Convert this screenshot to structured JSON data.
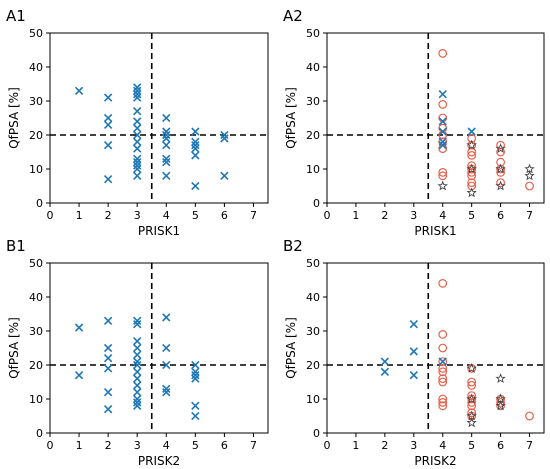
{
  "chart_data": [
    {
      "panel": "A1",
      "type": "scatter",
      "xlabel": "PRISK1",
      "ylabel": "QfPSA [%]",
      "xlim": [
        0,
        7.5
      ],
      "ylim": [
        0,
        50
      ],
      "xticks": [
        "0",
        "1",
        "2",
        "3",
        "4",
        "5",
        "6",
        "7"
      ],
      "yticks": [
        "0",
        "10",
        "20",
        "30",
        "40",
        "50"
      ],
      "hline": 20,
      "vline": 3.5,
      "series": [
        {
          "marker": "x",
          "color": "#1f77b4",
          "points": [
            [
              1,
              33
            ],
            [
              2,
              31
            ],
            [
              2,
              25
            ],
            [
              2,
              23
            ],
            [
              2,
              17
            ],
            [
              2,
              7
            ],
            [
              3,
              34
            ],
            [
              3,
              33
            ],
            [
              3,
              32
            ],
            [
              3,
              31
            ],
            [
              3,
              27
            ],
            [
              3,
              24
            ],
            [
              3,
              22
            ],
            [
              3,
              20
            ],
            [
              3,
              18
            ],
            [
              3,
              16
            ],
            [
              3,
              13
            ],
            [
              3,
              12
            ],
            [
              3,
              11
            ],
            [
              3,
              10
            ],
            [
              3,
              8
            ],
            [
              4,
              25
            ],
            [
              4,
              21
            ],
            [
              4,
              20
            ],
            [
              4,
              19
            ],
            [
              4,
              17
            ],
            [
              4,
              13
            ],
            [
              4,
              12
            ],
            [
              4,
              8
            ],
            [
              5,
              21
            ],
            [
              5,
              18
            ],
            [
              5,
              17
            ],
            [
              5,
              16
            ],
            [
              5,
              14
            ],
            [
              5,
              5
            ],
            [
              6,
              20
            ],
            [
              6,
              19
            ],
            [
              6,
              8
            ]
          ]
        }
      ]
    },
    {
      "panel": "A2",
      "type": "scatter",
      "xlabel": "PRISK1",
      "ylabel": "QfPSA [%]",
      "xlim": [
        0,
        7.5
      ],
      "ylim": [
        0,
        50
      ],
      "xticks": [
        "0",
        "1",
        "2",
        "3",
        "4",
        "5",
        "6",
        "7"
      ],
      "yticks": [
        "0",
        "10",
        "20",
        "30",
        "40",
        "50"
      ],
      "hline": 20,
      "vline": 3.5,
      "series": [
        {
          "marker": "circle",
          "color": "#e8604c",
          "points": [
            [
              4,
              44
            ],
            [
              4,
              29
            ],
            [
              4,
              25
            ],
            [
              4,
              22
            ],
            [
              4,
              20
            ],
            [
              4,
              18
            ],
            [
              4,
              16
            ],
            [
              4,
              9
            ],
            [
              4,
              8
            ],
            [
              5,
              19
            ],
            [
              5,
              17
            ],
            [
              5,
              15
            ],
            [
              5,
              14
            ],
            [
              5,
              11
            ],
            [
              5,
              10
            ],
            [
              5,
              9
            ],
            [
              5,
              8
            ],
            [
              5,
              6
            ],
            [
              5,
              5
            ],
            [
              6,
              17
            ],
            [
              6,
              15
            ],
            [
              6,
              12
            ],
            [
              6,
              10
            ],
            [
              6,
              9
            ],
            [
              6,
              6
            ],
            [
              7,
              5
            ]
          ]
        },
        {
          "marker": "x",
          "color": "#1f77b4",
          "points": [
            [
              4,
              32
            ],
            [
              4,
              24
            ],
            [
              4,
              21
            ],
            [
              4,
              18
            ],
            [
              4,
              17
            ],
            [
              5,
              21
            ]
          ]
        },
        {
          "marker": "star",
          "color": "#444444",
          "points": [
            [
              4,
              5
            ],
            [
              5,
              17
            ],
            [
              5,
              10
            ],
            [
              5,
              3
            ],
            [
              6,
              16
            ],
            [
              6,
              10
            ],
            [
              6,
              5
            ],
            [
              7,
              10
            ],
            [
              7,
              8
            ]
          ]
        }
      ]
    },
    {
      "panel": "B1",
      "type": "scatter",
      "xlabel": "PRISK2",
      "ylabel": "QfPSA [%]",
      "xlim": [
        0,
        7.5
      ],
      "ylim": [
        0,
        50
      ],
      "xticks": [
        "0",
        "1",
        "2",
        "3",
        "4",
        "5",
        "6",
        "7"
      ],
      "yticks": [
        "0",
        "10",
        "20",
        "30",
        "40",
        "50"
      ],
      "hline": 20,
      "vline": 3.5,
      "series": [
        {
          "marker": "x",
          "color": "#1f77b4",
          "points": [
            [
              1,
              31
            ],
            [
              1,
              17
            ],
            [
              2,
              33
            ],
            [
              2,
              25
            ],
            [
              2,
              22
            ],
            [
              2,
              19
            ],
            [
              2,
              12
            ],
            [
              2,
              7
            ],
            [
              3,
              33
            ],
            [
              3,
              32
            ],
            [
              3,
              27
            ],
            [
              3,
              25
            ],
            [
              3,
              23
            ],
            [
              3,
              21
            ],
            [
              3,
              20
            ],
            [
              3,
              18
            ],
            [
              3,
              16
            ],
            [
              3,
              14
            ],
            [
              3,
              12
            ],
            [
              3,
              10
            ],
            [
              3,
              9
            ],
            [
              3,
              8
            ],
            [
              4,
              34
            ],
            [
              4,
              25
            ],
            [
              4,
              20
            ],
            [
              4,
              13
            ],
            [
              4,
              12
            ],
            [
              5,
              20
            ],
            [
              5,
              18
            ],
            [
              5,
              17
            ],
            [
              5,
              16
            ],
            [
              5,
              8
            ],
            [
              5,
              5
            ]
          ]
        }
      ]
    },
    {
      "panel": "B2",
      "type": "scatter",
      "xlabel": "PRISK2",
      "ylabel": "QfPSA [%]",
      "xlim": [
        0,
        7.5
      ],
      "ylim": [
        0,
        50
      ],
      "xticks": [
        "0",
        "1",
        "2",
        "3",
        "4",
        "5",
        "6",
        "7"
      ],
      "yticks": [
        "0",
        "10",
        "20",
        "30",
        "40",
        "50"
      ],
      "hline": 20,
      "vline": 3.5,
      "series": [
        {
          "marker": "circle",
          "color": "#e8604c",
          "points": [
            [
              4,
              44
            ],
            [
              4,
              29
            ],
            [
              4,
              25
            ],
            [
              4,
              21
            ],
            [
              4,
              19
            ],
            [
              4,
              18
            ],
            [
              4,
              16
            ],
            [
              4,
              15
            ],
            [
              4,
              10
            ],
            [
              4,
              9
            ],
            [
              4,
              8
            ],
            [
              5,
              19
            ],
            [
              5,
              15
            ],
            [
              5,
              14
            ],
            [
              5,
              11
            ],
            [
              5,
              10
            ],
            [
              5,
              9
            ],
            [
              5,
              8
            ],
            [
              5,
              6
            ],
            [
              5,
              5
            ],
            [
              6,
              10
            ],
            [
              6,
              9
            ],
            [
              6,
              8
            ],
            [
              7,
              5
            ]
          ]
        },
        {
          "marker": "x",
          "color": "#1f77b4",
          "points": [
            [
              2,
              21
            ],
            [
              2,
              18
            ],
            [
              3,
              32
            ],
            [
              3,
              24
            ],
            [
              3,
              17
            ],
            [
              4,
              21
            ]
          ]
        },
        {
          "marker": "star",
          "color": "#444444",
          "points": [
            [
              5,
              19
            ],
            [
              5,
              10
            ],
            [
              5,
              5
            ],
            [
              5,
              3
            ],
            [
              6,
              16
            ],
            [
              6,
              10
            ],
            [
              6,
              8
            ]
          ]
        }
      ]
    }
  ]
}
